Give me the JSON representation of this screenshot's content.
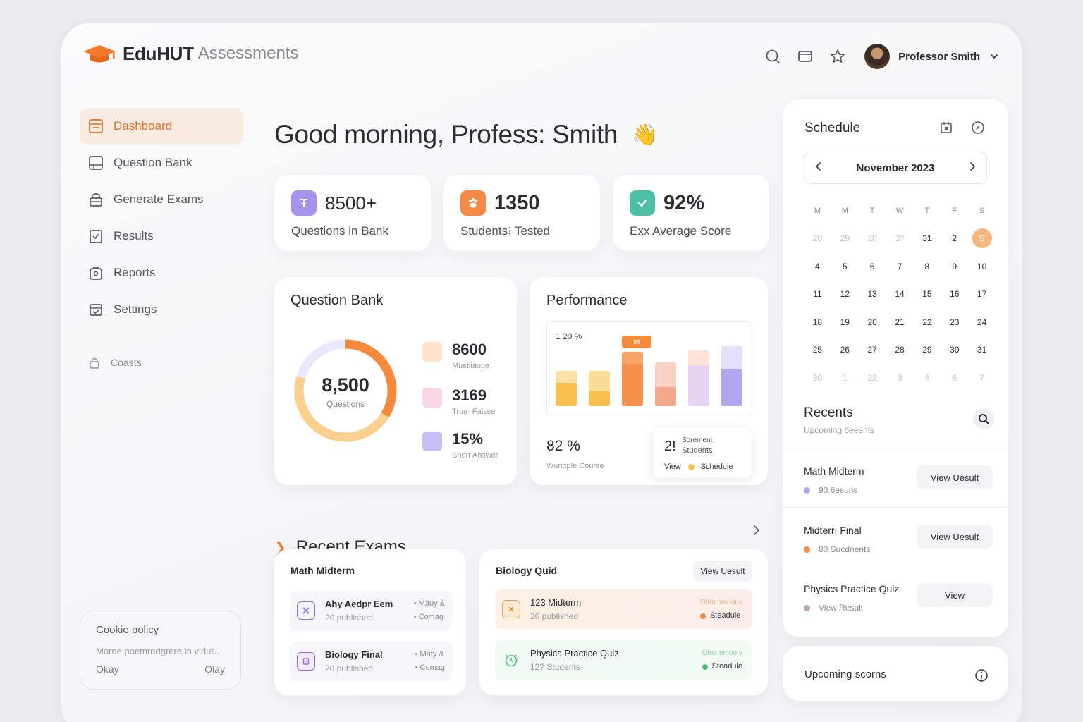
{
  "app": {
    "brand": "EduHUT",
    "brand_sub": "Assessments"
  },
  "header": {
    "user_name": "Professor Smith"
  },
  "sidebar": {
    "items": [
      {
        "label": "Dashboard",
        "icon": "dashboard-icon"
      },
      {
        "label": "Question Bank",
        "icon": "question-bank-icon"
      },
      {
        "label": "Generate Exams",
        "icon": "generate-exams-icon"
      },
      {
        "label": "Results",
        "icon": "results-icon"
      },
      {
        "label": "Reports",
        "icon": "reports-icon"
      },
      {
        "label": "Settings",
        "icon": "settings-icon"
      }
    ],
    "extra": {
      "label": "Coasts",
      "icon": "lock-icon"
    }
  },
  "cookie": {
    "title": "Cookie policy",
    "text": "Morne poemrndgrere in vidut…",
    "btn_left": "Okay",
    "btn_right": "Olay"
  },
  "greeting": {
    "text": "Good morning, Profess: Smith",
    "emoji": "👋"
  },
  "stats": [
    {
      "value": "8500+",
      "label": "Questions in Bank",
      "color": "#9b87e6"
    },
    {
      "value": "1350",
      "label": "Students⁝ Tested",
      "color": "#f48a45"
    },
    {
      "value": "92%",
      "label": "Exx Average Score",
      "color": "#4cbfa6"
    }
  ],
  "question_bank": {
    "title": "Question Bank",
    "total": "8,500",
    "total_label": "Questions",
    "legend": [
      {
        "value": "8600",
        "label": "Mustiiauue",
        "color": "#fde2cc"
      },
      {
        "value": "3169",
        "label": "True- Falsse",
        "color": "#f7d5e6"
      },
      {
        "value": "15%",
        "label": "Short Answer",
        "color": "#c9bff6"
      }
    ]
  },
  "performance": {
    "title": "Performance",
    "y_label": "1 20 %",
    "badge": "96",
    "metric": "82 %",
    "metric_label": "Wunttple Course",
    "popup": {
      "num": "2!",
      "line1": "Sorement",
      "line2": "Students",
      "view": "View",
      "schedule": "Schedule"
    },
    "bars": [
      {
        "base": 0.32,
        "top": 0.16,
        "base_color": "#f7c04a",
        "top_color": "#fbe0a6"
      },
      {
        "base": 0.2,
        "top": 0.28,
        "base_color": "#f7c04a",
        "top_color": "#fbdc95"
      },
      {
        "base": 0.58,
        "top": 0.16,
        "base_color": "#f5914a",
        "top_color": "#f8a466"
      },
      {
        "base": 0.26,
        "top": 0.34,
        "base_color": "#f3a989",
        "top_color": "#fbd3c4"
      },
      {
        "base": 0.56,
        "top": 0.2,
        "base_color": "#e8d4f2",
        "top_color": "#fbe4d6"
      },
      {
        "base": 0.5,
        "top": 0.32,
        "base_color": "#b2a6ef",
        "top_color": "#e6e1fa"
      }
    ]
  },
  "recent_exams": {
    "title": "Recent Exams",
    "left_card": {
      "title": "Math Midterm",
      "items": [
        {
          "name": "Ahy Aedpr Eem",
          "sub": "20 published",
          "meta1": "• Mauy &",
          "meta2": "• Comag",
          "icon": "close-box-icon"
        },
        {
          "name": "Biology Final",
          "sub": "20 published",
          "meta1": "• Maty &",
          "meta2": "• Comag",
          "icon": "document-icon"
        }
      ]
    },
    "right_card": {
      "title": "Biology Quid",
      "button": "View Uesult",
      "items": [
        {
          "name": "123 Midterm",
          "sub": "20 published",
          "meta1": "Ofeb bmoouv",
          "meta2": "Steadule",
          "dot": "#f48a45",
          "icon": "calendar-x-icon"
        },
        {
          "name": "Physics Practice Quiz",
          "sub": "12? Students",
          "meta1": "Ofeb bmoo v",
          "meta2": "Steadule",
          "dot": "#4cbf7e",
          "icon": "clock-icon"
        }
      ]
    }
  },
  "schedule": {
    "title": "Schedule",
    "month": "November 2023",
    "days_of_week": [
      "M",
      "M",
      "T",
      "W",
      "T",
      "F",
      "S"
    ],
    "weeks": [
      [
        "28",
        "29",
        "20",
        "3?",
        "31",
        "2",
        "S"
      ],
      [
        "4",
        "5",
        "6",
        "7",
        "8",
        "9",
        "10"
      ],
      [
        "11",
        "12",
        "13",
        "14",
        "15",
        "16",
        "17"
      ],
      [
        "18",
        "19",
        "20",
        "21",
        "22",
        "23",
        "24"
      ],
      [
        "25",
        "26",
        "27",
        "28",
        "29",
        "30",
        "31"
      ],
      [
        "30",
        "1",
        "22",
        "3",
        "4",
        "6",
        "7"
      ]
    ],
    "today": "S"
  },
  "recents": {
    "title": "Recents",
    "subtitle": "Upcoming 6eeents",
    "items": [
      {
        "name": "Math Midterm",
        "sub": "90 6esuns",
        "dot": "#b2a6ef",
        "button": "View Uesult"
      },
      {
        "name": "Midterrı Final",
        "sub": "80 Sucdnents",
        "dot": "#f48a45",
        "button": "View Uesult"
      },
      {
        "name": "Physics Practice Quiz",
        "sub": "View Result",
        "dot": "#b5aaa4",
        "button": "View"
      }
    ]
  },
  "upcoming": {
    "title": "Upcoming scorns"
  }
}
